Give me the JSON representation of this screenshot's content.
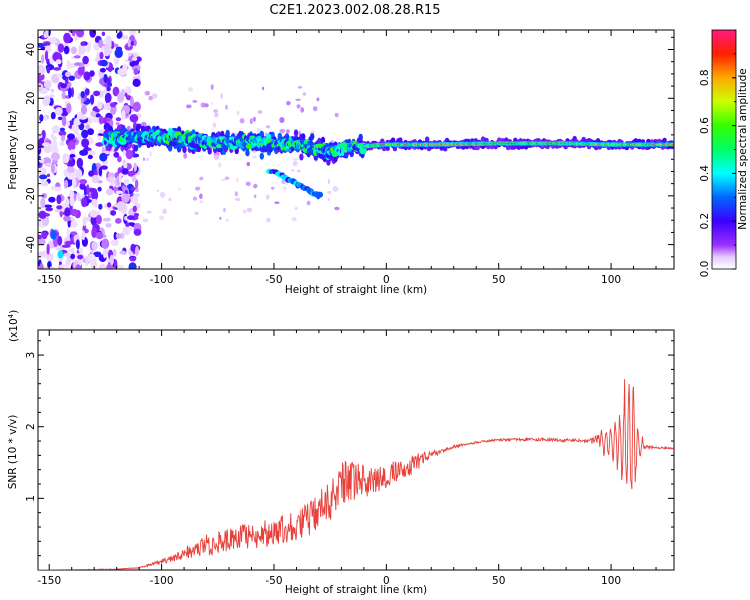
{
  "title": "C2E1.2023.002.08.28.R15",
  "colors": {
    "snr_line": "#e8403a",
    "axis": "#000000"
  },
  "chart_data": [
    {
      "type": "heatmap",
      "xlabel": "Height of straight line (km)",
      "ylabel": "Frequency (Hz)",
      "xlim": [
        -155,
        128
      ],
      "ylim": [
        -50,
        48
      ],
      "x_ticks": [
        -150,
        -100,
        -50,
        0,
        50,
        100
      ],
      "y_ticks": [
        -40,
        -20,
        0,
        20,
        40
      ],
      "x_tick_labels": [
        "-150",
        "-100",
        "-50",
        "0",
        "50",
        "100"
      ],
      "y_tick_labels": [
        "-40",
        "-20",
        "0",
        "20",
        "40"
      ],
      "colorbar": {
        "label": "Normalized spectral amplitude",
        "range": [
          0,
          1
        ],
        "ticks": [
          0.0,
          0.2,
          0.4,
          0.6,
          0.8
        ],
        "tick_labels": [
          "0.0",
          "0.2",
          "0.4",
          "0.6",
          "0.8"
        ],
        "colormap": "hsv-reversed (white/purple low, blue, cyan, green, yellow, red, magenta high)"
      },
      "band_center_hz": [
        {
          "x": -120,
          "y": 4
        },
        {
          "x": -100,
          "y": 4
        },
        {
          "x": -80,
          "y": 2
        },
        {
          "x": -60,
          "y": 2
        },
        {
          "x": -40,
          "y": 1
        },
        {
          "x": -25,
          "y": -2
        },
        {
          "x": -15,
          "y": 0
        },
        {
          "x": 0,
          "y": 1
        },
        {
          "x": 20,
          "y": 1
        },
        {
          "x": 50,
          "y": 1.5
        },
        {
          "x": 80,
          "y": 1.5
        },
        {
          "x": 100,
          "y": 1
        },
        {
          "x": 128,
          "y": 1
        }
      ],
      "secondary_branch_hz": [
        {
          "x": -50,
          "y": -10
        },
        {
          "x": -40,
          "y": -15
        },
        {
          "x": -30,
          "y": -20
        }
      ]
    },
    {
      "type": "line",
      "xlabel": "Height of straight line (km)",
      "ylabel": "SNR (10 * v/v)",
      "y_multiplier_label": "(x10",
      "y_multiplier_exp": "4",
      "y_multiplier_close": ")",
      "xlim": [
        -155,
        128
      ],
      "ylim": [
        0,
        3.35
      ],
      "x_ticks": [
        -150,
        -100,
        -50,
        0,
        50,
        100
      ],
      "y_ticks": [
        1,
        2,
        3
      ],
      "x_tick_labels": [
        "-150",
        "-100",
        "-50",
        "0",
        "50",
        "100"
      ],
      "y_tick_labels": [
        "1",
        "2",
        "3"
      ],
      "series": [
        {
          "envelope": [
            {
              "x": -155,
              "y": 0.0
            },
            {
              "x": -120,
              "y": 0.01
            },
            {
              "x": -110,
              "y": 0.03
            },
            {
              "x": -100,
              "y": 0.1
            },
            {
              "x": -85,
              "y": 0.25
            },
            {
              "x": -70,
              "y": 0.35
            },
            {
              "x": -50,
              "y": 0.45
            },
            {
              "x": -35,
              "y": 0.6
            },
            {
              "x": -25,
              "y": 0.8
            },
            {
              "x": -20,
              "y": 1.05
            },
            {
              "x": -10,
              "y": 1.2
            },
            {
              "x": 0,
              "y": 1.3
            },
            {
              "x": 10,
              "y": 1.45
            },
            {
              "x": 20,
              "y": 1.6
            },
            {
              "x": 30,
              "y": 1.72
            },
            {
              "x": 40,
              "y": 1.78
            },
            {
              "x": 50,
              "y": 1.82
            },
            {
              "x": 70,
              "y": 1.82
            },
            {
              "x": 90,
              "y": 1.8
            },
            {
              "x": 100,
              "y": 1.8
            },
            {
              "x": 105,
              "y": 1.8
            },
            {
              "x": 112,
              "y": 1.72
            },
            {
              "x": 128,
              "y": 1.7
            }
          ],
          "noise_amplitude": [
            {
              "x": -155,
              "a": 0.0
            },
            {
              "x": -110,
              "a": 0.01
            },
            {
              "x": -95,
              "a": 0.1
            },
            {
              "x": -80,
              "a": 0.3
            },
            {
              "x": -50,
              "a": 0.4
            },
            {
              "x": -35,
              "a": 0.5
            },
            {
              "x": -20,
              "a": 0.7
            },
            {
              "x": -10,
              "a": 0.4
            },
            {
              "x": 10,
              "a": 0.3
            },
            {
              "x": 25,
              "a": 0.05
            },
            {
              "x": 40,
              "a": 0.03
            },
            {
              "x": 90,
              "a": 0.05
            },
            {
              "x": 95,
              "a": 0.2
            },
            {
              "x": 100,
              "a": 0.3
            },
            {
              "x": 104,
              "a": 0.5
            },
            {
              "x": 108,
              "a": 1.4
            },
            {
              "x": 112,
              "a": 0.4
            },
            {
              "x": 115,
              "a": 0.04
            },
            {
              "x": 128,
              "a": 0.02
            }
          ]
        }
      ]
    }
  ]
}
